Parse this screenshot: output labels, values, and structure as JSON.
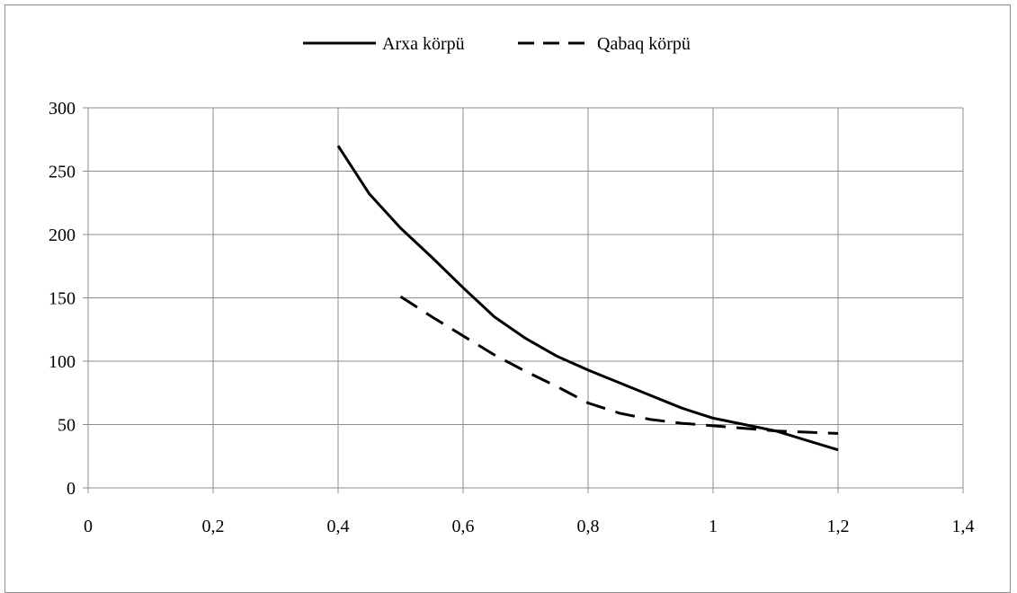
{
  "chart_data": {
    "type": "line",
    "title": "",
    "xlabel": "",
    "ylabel": "",
    "xlim": [
      0,
      1.4
    ],
    "ylim": [
      0,
      300
    ],
    "x_ticks": [
      0,
      0.2,
      0.4,
      0.6,
      0.8,
      1.0,
      1.2,
      1.4
    ],
    "x_tick_labels": [
      "0",
      "0,2",
      "0,4",
      "0,6",
      "0,8",
      "1",
      "1,2",
      "1,4"
    ],
    "y_ticks": [
      0,
      50,
      100,
      150,
      200,
      250,
      300
    ],
    "y_tick_labels": [
      "0",
      "50",
      "100",
      "150",
      "200",
      "250",
      "300"
    ],
    "grid": true,
    "legend_position": "top",
    "series": [
      {
        "name": "Arxa körpü",
        "style": "solid",
        "color": "#000000",
        "points": [
          [
            0.4,
            270
          ],
          [
            0.45,
            232
          ],
          [
            0.5,
            205
          ],
          [
            0.55,
            182
          ],
          [
            0.6,
            158
          ],
          [
            0.65,
            135
          ],
          [
            0.7,
            118
          ],
          [
            0.75,
            104
          ],
          [
            0.8,
            93
          ],
          [
            0.85,
            83
          ],
          [
            0.9,
            73
          ],
          [
            0.95,
            63
          ],
          [
            1.0,
            55
          ],
          [
            1.05,
            50
          ],
          [
            1.1,
            45
          ],
          [
            1.2,
            30
          ]
        ]
      },
      {
        "name": "Qabaq körpü",
        "style": "dashed",
        "color": "#000000",
        "points": [
          [
            0.5,
            151
          ],
          [
            0.55,
            135
          ],
          [
            0.6,
            120
          ],
          [
            0.65,
            105
          ],
          [
            0.7,
            92
          ],
          [
            0.75,
            80
          ],
          [
            0.8,
            67
          ],
          [
            0.85,
            59
          ],
          [
            0.9,
            54
          ],
          [
            0.95,
            51
          ],
          [
            1.0,
            49
          ],
          [
            1.05,
            47
          ],
          [
            1.1,
            45
          ],
          [
            1.2,
            43
          ]
        ]
      }
    ]
  },
  "colors": {
    "grid": "#8c8c8c",
    "axis": "#8c8c8c",
    "frame": "#8c8c8c",
    "line": "#000000"
  }
}
